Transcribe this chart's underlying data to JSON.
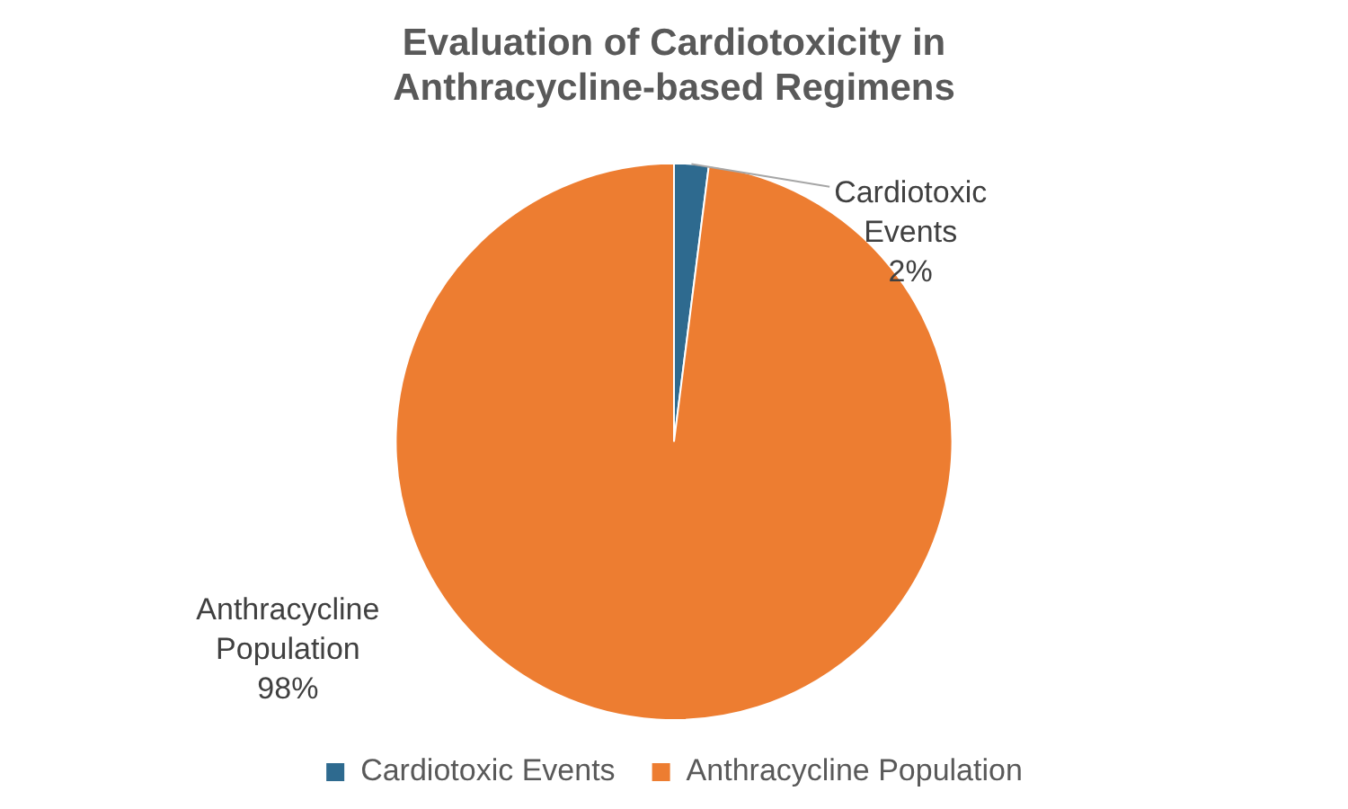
{
  "chart_data": {
    "type": "pie",
    "title": "Evaluation of Cardiotoxicity in Anthracycline-based Regimens",
    "categories": [
      "Cardiotoxic Events",
      "Anthracycline Population"
    ],
    "values": [
      2,
      98
    ],
    "colors": [
      "#2e6a8f",
      "#ed7d31"
    ],
    "value_labels": [
      "2%",
      "98%"
    ],
    "legend": "bottom"
  }
}
